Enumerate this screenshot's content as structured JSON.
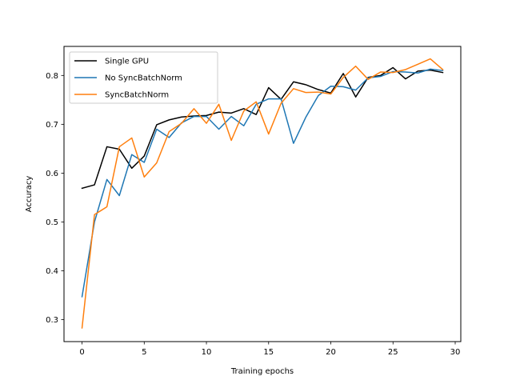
{
  "chart_data": {
    "type": "line",
    "xlabel": "Training epochs",
    "ylabel": "Accuracy",
    "xlim": [
      -1.45,
      30.45
    ],
    "ylim": [
      0.255,
      0.8595
    ],
    "xticks": [
      0,
      5,
      10,
      15,
      20,
      25,
      30
    ],
    "yticks": [
      0.3,
      0.4,
      0.5,
      0.6,
      0.7,
      0.8
    ],
    "ytick_labels": [
      "0.3",
      "0.4",
      "0.5",
      "0.6",
      "0.7",
      "0.8"
    ],
    "grid": false,
    "legend_position": "upper left",
    "x": [
      0,
      1,
      2,
      3,
      4,
      5,
      6,
      7,
      8,
      9,
      10,
      11,
      12,
      13,
      14,
      15,
      16,
      17,
      18,
      19,
      20,
      21,
      22,
      23,
      24,
      25,
      26,
      27,
      28,
      29
    ],
    "series": [
      {
        "name": "Single GPU",
        "color": "#000000",
        "values": [
          0.569,
          0.576,
          0.654,
          0.649,
          0.61,
          0.635,
          0.699,
          0.709,
          0.715,
          0.717,
          0.718,
          0.725,
          0.723,
          0.732,
          0.72,
          0.775,
          0.751,
          0.787,
          0.781,
          0.771,
          0.764,
          0.804,
          0.756,
          0.796,
          0.8,
          0.816,
          0.793,
          0.809,
          0.811,
          0.806
        ]
      },
      {
        "name": "No SyncBatchNorm",
        "color": "#1f77b4",
        "values": [
          0.347,
          0.5,
          0.587,
          0.554,
          0.638,
          0.622,
          0.69,
          0.673,
          0.703,
          0.716,
          0.716,
          0.69,
          0.716,
          0.697,
          0.741,
          0.752,
          0.752,
          0.661,
          0.715,
          0.759,
          0.778,
          0.777,
          0.77,
          0.795,
          0.798,
          0.808,
          0.807,
          0.805,
          0.813,
          0.81
        ]
      },
      {
        "name": "SyncBatchNorm",
        "color": "#ff7f0e",
        "values": [
          0.283,
          0.515,
          0.531,
          0.654,
          0.672,
          0.592,
          0.621,
          0.685,
          0.702,
          0.732,
          0.702,
          0.741,
          0.667,
          0.727,
          0.746,
          0.68,
          0.743,
          0.773,
          0.765,
          0.766,
          0.762,
          0.796,
          0.819,
          0.792,
          0.807,
          0.806,
          0.812,
          0.823,
          0.834,
          0.812
        ]
      }
    ]
  }
}
